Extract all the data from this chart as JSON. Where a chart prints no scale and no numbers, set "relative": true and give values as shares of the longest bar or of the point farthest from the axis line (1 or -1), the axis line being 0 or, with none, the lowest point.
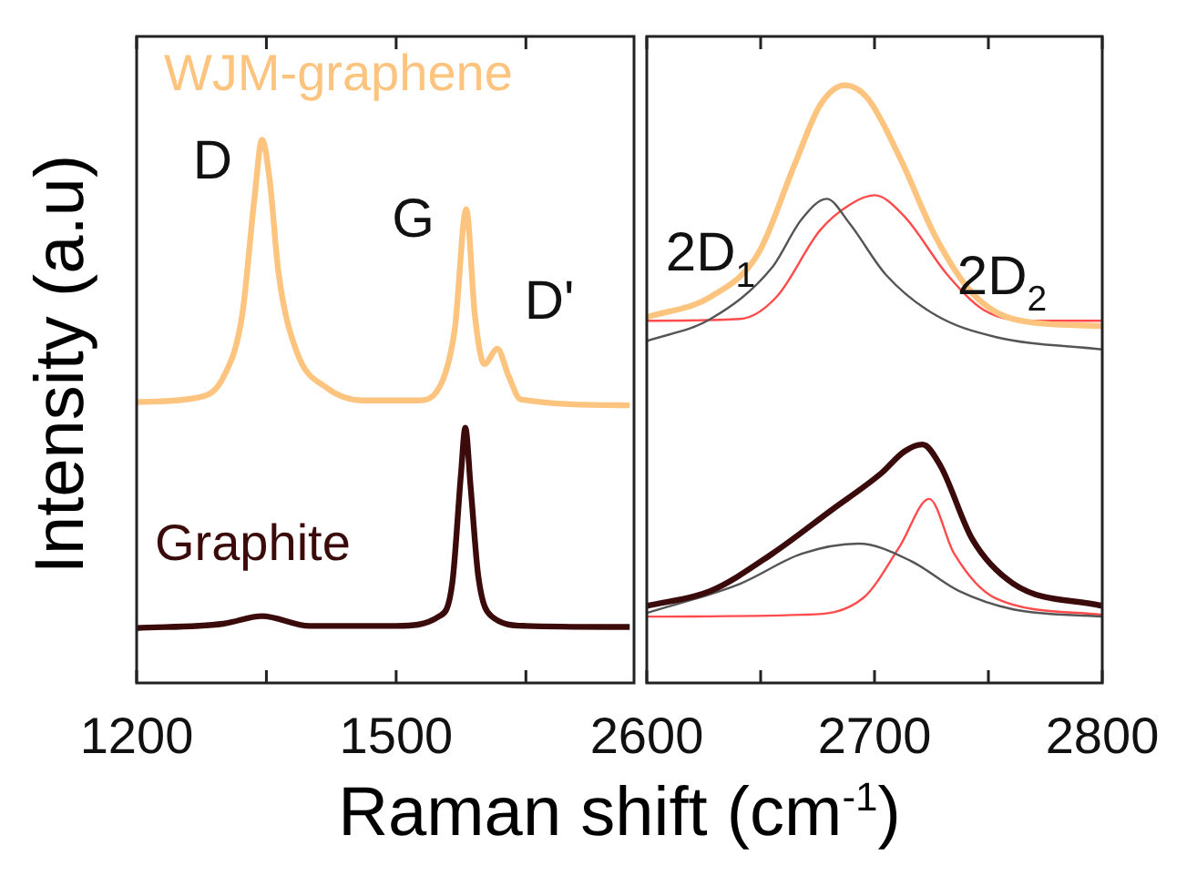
{
  "chart_data": [
    {
      "type": "line",
      "relative": true,
      "ylabel": "Intensity (a.u)",
      "xlabel": "Raman shift (cm$^{-1}$)",
      "xlim": [
        1200,
        1775
      ],
      "xticks": [
        1200,
        {
          "value": 1350,
          "label": null
        },
        1500,
        {
          "value": 1650,
          "label": null
        }
      ],
      "series": [
        {
          "name": "WJM-graphene",
          "color": "#fcc47e",
          "x": [
            1200,
            1273,
            1301,
            1322,
            1336,
            1345,
            1354,
            1364,
            1385,
            1420,
            1462,
            1525,
            1553,
            1568,
            1581,
            1591,
            1602,
            1617,
            1630,
            1644,
            1770
          ],
          "values": [
            0.517,
            0.526,
            0.565,
            0.677,
            0.889,
            1.0,
            0.923,
            0.755,
            0.61,
            0.543,
            0.52,
            0.52,
            0.554,
            0.654,
            0.872,
            0.677,
            0.587,
            0.615,
            0.565,
            0.522,
            0.511
          ]
        },
        {
          "name": "Graphite",
          "color": "#3b0b0b",
          "x": [
            1200,
            1300,
            1345,
            1400,
            1500,
            1550,
            1565,
            1575,
            1580,
            1586,
            1595,
            1610,
            1650,
            1770
          ],
          "values": [
            0.101,
            0.109,
            0.123,
            0.105,
            0.105,
            0.123,
            0.185,
            0.386,
            0.47,
            0.363,
            0.196,
            0.123,
            0.105,
            0.103
          ]
        }
      ],
      "annotations": [
        "D",
        "G",
        "D'"
      ]
    },
    {
      "type": "line",
      "relative": true,
      "xlim": [
        2600,
        2800
      ],
      "xticks": [
        2600,
        {
          "value": 2650,
          "label": null
        },
        2700,
        {
          "value": 2750,
          "label": null
        },
        2800
      ],
      "series": [
        {
          "color": "#fcc47e",
          "x": [
            2600,
            2628,
            2649,
            2665,
            2676,
            2687,
            2697,
            2711,
            2727,
            2743,
            2761,
            2800
          ],
          "values": [
            0.612,
            0.646,
            0.719,
            0.868,
            0.966,
            1.0,
            0.978,
            0.88,
            0.745,
            0.652,
            0.609,
            0.597
          ]
        },
        {
          "color": "#555555",
          "x": [
            2600,
            2628,
            2655,
            2668,
            2679,
            2689,
            2705,
            2727,
            2753,
            2800
          ],
          "values": [
            0.572,
            0.609,
            0.695,
            0.776,
            0.81,
            0.769,
            0.683,
            0.615,
            0.579,
            0.558
          ]
        },
        {
          "color": "#ff4b4b",
          "x": [
            2600,
            2641,
            2657,
            2676,
            2689,
            2700,
            2713,
            2732,
            2748,
            2769,
            2800
          ],
          "values": [
            0.606,
            0.609,
            0.646,
            0.757,
            0.8,
            0.816,
            0.781,
            0.683,
            0.624,
            0.606,
            0.606
          ]
        },
        {
          "color": "#3b0b0b",
          "x": [
            2600,
            2628,
            2655,
            2681,
            2703,
            2713,
            2721,
            2729,
            2743,
            2761,
            2800
          ],
          "values": [
            0.129,
            0.154,
            0.216,
            0.289,
            0.351,
            0.387,
            0.399,
            0.363,
            0.24,
            0.166,
            0.129
          ]
        },
        {
          "color": "#555555",
          "x": [
            2600,
            2641,
            2668,
            2693,
            2716,
            2737,
            2761,
            2800
          ],
          "values": [
            0.117,
            0.166,
            0.216,
            0.233,
            0.204,
            0.154,
            0.123,
            0.111
          ]
        },
        {
          "color": "#ff4b4b",
          "x": [
            2600,
            2668,
            2695,
            2711,
            2724,
            2735,
            2753,
            2800
          ],
          "values": [
            0.111,
            0.114,
            0.142,
            0.228,
            0.308,
            0.216,
            0.142,
            0.114
          ]
        }
      ],
      "annotations": [
        "2D$_{1}$",
        "2D$_{2}$"
      ]
    }
  ]
}
